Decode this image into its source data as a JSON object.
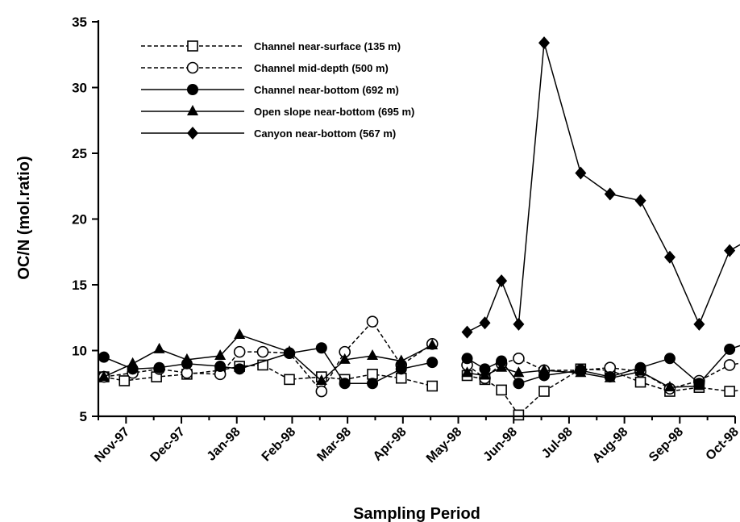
{
  "chart_data": {
    "type": "line",
    "xlabel": "Sampling Period",
    "ylabel": "OC/N (mol.ratio)",
    "ylim": [
      5,
      35
    ],
    "yticks": [
      5,
      10,
      15,
      20,
      25,
      30,
      35
    ],
    "xlim": [
      0,
      11.5
    ],
    "xticks": [
      {
        "label": "Nov-97",
        "x": 0.5
      },
      {
        "label": "Dec-97",
        "x": 1.5
      },
      {
        "label": "Jan-98",
        "x": 2.5
      },
      {
        "label": "Feb-98",
        "x": 3.5
      },
      {
        "label": "Mar-98",
        "x": 4.5
      },
      {
        "label": "Apr-98",
        "x": 5.5
      },
      {
        "label": "May-98",
        "x": 6.5
      },
      {
        "label": "Jun-98",
        "x": 7.5
      },
      {
        "label": "Jul-98",
        "x": 8.5
      },
      {
        "label": "Aug-98",
        "x": 9.5
      },
      {
        "label": "Sep-98",
        "x": 10.5
      },
      {
        "label": "Oct-98",
        "x": 11.5
      }
    ],
    "grid": false,
    "legend_position": "top-left",
    "series": [
      {
        "name": "Channel near-surface (135 m)",
        "marker": "open-square",
        "linestyle": "dashed",
        "segments": [
          [
            [
              0.1,
              8.0
            ],
            [
              0.47,
              7.7
            ],
            [
              1.05,
              8.0
            ],
            [
              1.6,
              8.2
            ],
            [
              2.2,
              8.5
            ],
            [
              2.55,
              8.8
            ],
            [
              2.97,
              8.9
            ],
            [
              3.45,
              7.8
            ],
            [
              4.03,
              8.0
            ],
            [
              4.45,
              7.8
            ],
            [
              4.95,
              8.2
            ],
            [
              5.47,
              7.9
            ],
            [
              6.03,
              7.3
            ]
          ],
          [
            [
              6.66,
              8.1
            ],
            [
              6.98,
              7.8
            ],
            [
              7.28,
              7.0
            ],
            [
              7.59,
              5.1
            ],
            [
              8.05,
              6.9
            ],
            [
              8.71,
              8.6
            ],
            [
              9.24,
              8.5
            ],
            [
              9.79,
              7.6
            ],
            [
              10.32,
              6.9
            ],
            [
              10.85,
              7.2
            ],
            [
              11.4,
              6.9
            ],
            [
              11.95,
              7.1
            ]
          ]
        ]
      },
      {
        "name": "Channel mid-depth (500 m)",
        "marker": "open-circle",
        "linestyle": "dashed",
        "segments": [
          [
            [
              0.1,
              8.0
            ],
            [
              0.62,
              8.3
            ],
            [
              1.1,
              8.6
            ],
            [
              1.6,
              8.3
            ],
            [
              2.2,
              8.2
            ],
            [
              2.55,
              9.9
            ],
            [
              2.97,
              9.9
            ],
            [
              3.45,
              9.8
            ],
            [
              4.03,
              6.9
            ],
            [
              4.45,
              9.9
            ],
            [
              4.95,
              12.2
            ],
            [
              5.47,
              8.9
            ],
            [
              6.03,
              10.5
            ]
          ],
          [
            [
              6.66,
              8.9
            ],
            [
              6.98,
              7.9
            ],
            [
              7.28,
              9.0
            ],
            [
              7.59,
              9.4
            ],
            [
              8.05,
              8.5
            ],
            [
              8.71,
              8.5
            ],
            [
              9.24,
              8.7
            ],
            [
              9.79,
              8.4
            ],
            [
              10.32,
              7.1
            ],
            [
              10.85,
              7.7
            ],
            [
              11.4,
              8.9
            ],
            [
              11.95,
              9.3
            ]
          ]
        ]
      },
      {
        "name": "Channel near-bottom (692 m)",
        "marker": "filled-circle",
        "linestyle": "solid",
        "segments": [
          [
            [
              0.1,
              9.5
            ],
            [
              0.62,
              8.6
            ],
            [
              1.1,
              8.7
            ],
            [
              1.6,
              9.0
            ],
            [
              2.2,
              8.8
            ],
            [
              2.55,
              8.6
            ],
            [
              3.45,
              9.8
            ],
            [
              4.03,
              10.2
            ],
            [
              4.45,
              7.5
            ],
            [
              4.95,
              7.5
            ],
            [
              5.47,
              8.6
            ],
            [
              6.03,
              9.1
            ]
          ],
          [
            [
              6.66,
              9.4
            ],
            [
              6.98,
              8.6
            ],
            [
              7.28,
              9.2
            ],
            [
              7.59,
              7.5
            ],
            [
              8.05,
              8.1
            ],
            [
              8.71,
              8.5
            ],
            [
              9.24,
              8.0
            ],
            [
              9.79,
              8.7
            ],
            [
              10.32,
              9.4
            ],
            [
              10.85,
              7.5
            ],
            [
              11.4,
              10.1
            ],
            [
              11.95,
              10.9
            ]
          ]
        ]
      },
      {
        "name": "Open slope near-bottom (695 m)",
        "marker": "filled-triangle",
        "linestyle": "solid",
        "segments": [
          [
            [
              0.1,
              8.0
            ],
            [
              0.62,
              9.0
            ],
            [
              1.1,
              10.1
            ],
            [
              1.6,
              9.3
            ],
            [
              2.2,
              9.6
            ],
            [
              2.55,
              11.2
            ],
            [
              3.45,
              9.9
            ],
            [
              4.03,
              7.7
            ],
            [
              4.45,
              9.3
            ],
            [
              4.95,
              9.6
            ],
            [
              5.47,
              9.2
            ],
            [
              6.03,
              10.4
            ]
          ],
          [
            [
              6.66,
              8.3
            ],
            [
              6.98,
              8.1
            ],
            [
              7.28,
              8.7
            ],
            [
              7.59,
              8.3
            ],
            [
              8.05,
              8.5
            ],
            [
              8.71,
              8.3
            ],
            [
              9.24,
              7.9
            ],
            [
              9.79,
              8.4
            ],
            [
              10.32,
              7.2
            ],
            [
              10.85,
              7.3
            ]
          ]
        ]
      },
      {
        "name": "Canyon near-bottom (567 m)",
        "marker": "filled-diamond",
        "linestyle": "solid",
        "segments": [
          [
            [
              6.66,
              11.4
            ],
            [
              6.98,
              12.1
            ],
            [
              7.28,
              15.3
            ],
            [
              7.59,
              12.0
            ],
            [
              8.05,
              33.4
            ],
            [
              8.71,
              23.5
            ],
            [
              9.24,
              21.9
            ],
            [
              9.79,
              21.4
            ],
            [
              10.32,
              17.1
            ],
            [
              10.85,
              12.0
            ],
            [
              11.4,
              17.6
            ],
            [
              11.95,
              18.9
            ]
          ]
        ]
      }
    ]
  }
}
